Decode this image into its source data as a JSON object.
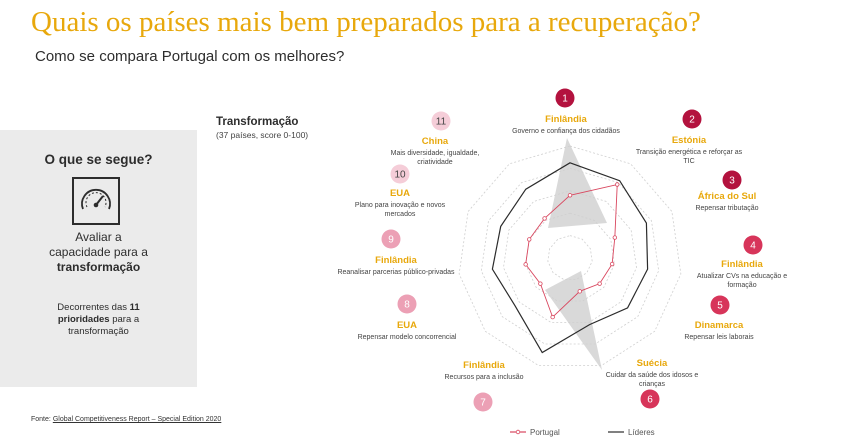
{
  "header": {
    "title": "Quais os países mais bem preparados para a recuperação?",
    "subtitle": "Como se compara Portugal com os melhores?"
  },
  "side_panel": {
    "heading": "O que se segue?",
    "icon": "gauge-icon",
    "caption_line1": "Avaliar a",
    "caption_line2": "capacidade para a",
    "caption_bold": "transformação",
    "note_pre": "Decorrentes das",
    "note_bold_num": "11",
    "note_bold_word": "prioridades",
    "note_post": "para a",
    "note_last": "transformação"
  },
  "chart_heading": {
    "title": "Transformação",
    "subtitle": "(37 países, score 0-100)"
  },
  "source": {
    "prefix": "Fonte:",
    "text": "Global Competitiveness Report – Special Edition 2020"
  },
  "colors": {
    "accent": "#e8a80c",
    "dark_red": "#b3123e",
    "medium_red": "#d7355a",
    "light_red": "#eca0b5",
    "portugal_line": "#d9475f",
    "leaders_line": "#2b2b2b"
  },
  "chart_data": {
    "type": "radar",
    "rmax": 100,
    "legend_position": "bottom",
    "series": [
      {
        "name": "Portugal",
        "values": [
          56,
          78,
          44,
          38,
          35,
          31,
          55,
          35,
          40,
          40,
          42
        ]
      },
      {
        "name": "Líderes",
        "values": [
          85,
          82,
          75,
          70,
          68,
          62,
          88,
          65,
          70,
          68,
          73
        ]
      }
    ],
    "axes": [
      {
        "rank": "1",
        "country": "Finlândia",
        "lines": [
          "Governo e confiança dos cidadãos"
        ],
        "tone": "dark"
      },
      {
        "rank": "2",
        "country": "Estónia",
        "lines": [
          "Transição energética e reforçar as",
          "TIC"
        ],
        "tone": "dark"
      },
      {
        "rank": "3",
        "country": "África do Sul",
        "lines": [
          "Repensar tributação"
        ],
        "tone": "dark"
      },
      {
        "rank": "4",
        "country": "Finlândia",
        "lines": [
          "Atualizar CVs na educação e",
          "formação"
        ],
        "tone": "medium"
      },
      {
        "rank": "5",
        "country": "Dinamarca",
        "lines": [
          "Repensar leis laborais"
        ],
        "tone": "medium"
      },
      {
        "rank": "6",
        "country": "Suécia",
        "lines": [
          "Cuidar da saúde dos idosos e",
          "crianças"
        ],
        "tone": "medium"
      },
      {
        "rank": "7",
        "country": "Finlândia",
        "lines": [
          "Recursos para a inclusão"
        ],
        "tone": "light"
      },
      {
        "rank": "8",
        "country": "EUA",
        "lines": [
          "Repensar modelo concorrencial"
        ],
        "tone": "light"
      },
      {
        "rank": "9",
        "country": "Finlândia",
        "lines": [
          "Reanalisar parcerias público-privadas"
        ],
        "tone": "light"
      },
      {
        "rank": "10",
        "country": "EUA",
        "lines": [
          "Plano para inovação e novos",
          "mercados"
        ],
        "tone": "faint"
      },
      {
        "rank": "11",
        "country": "China",
        "lines": [
          "Mais diversidade, igualdade,",
          "criatividade"
        ],
        "tone": "faint"
      }
    ]
  }
}
